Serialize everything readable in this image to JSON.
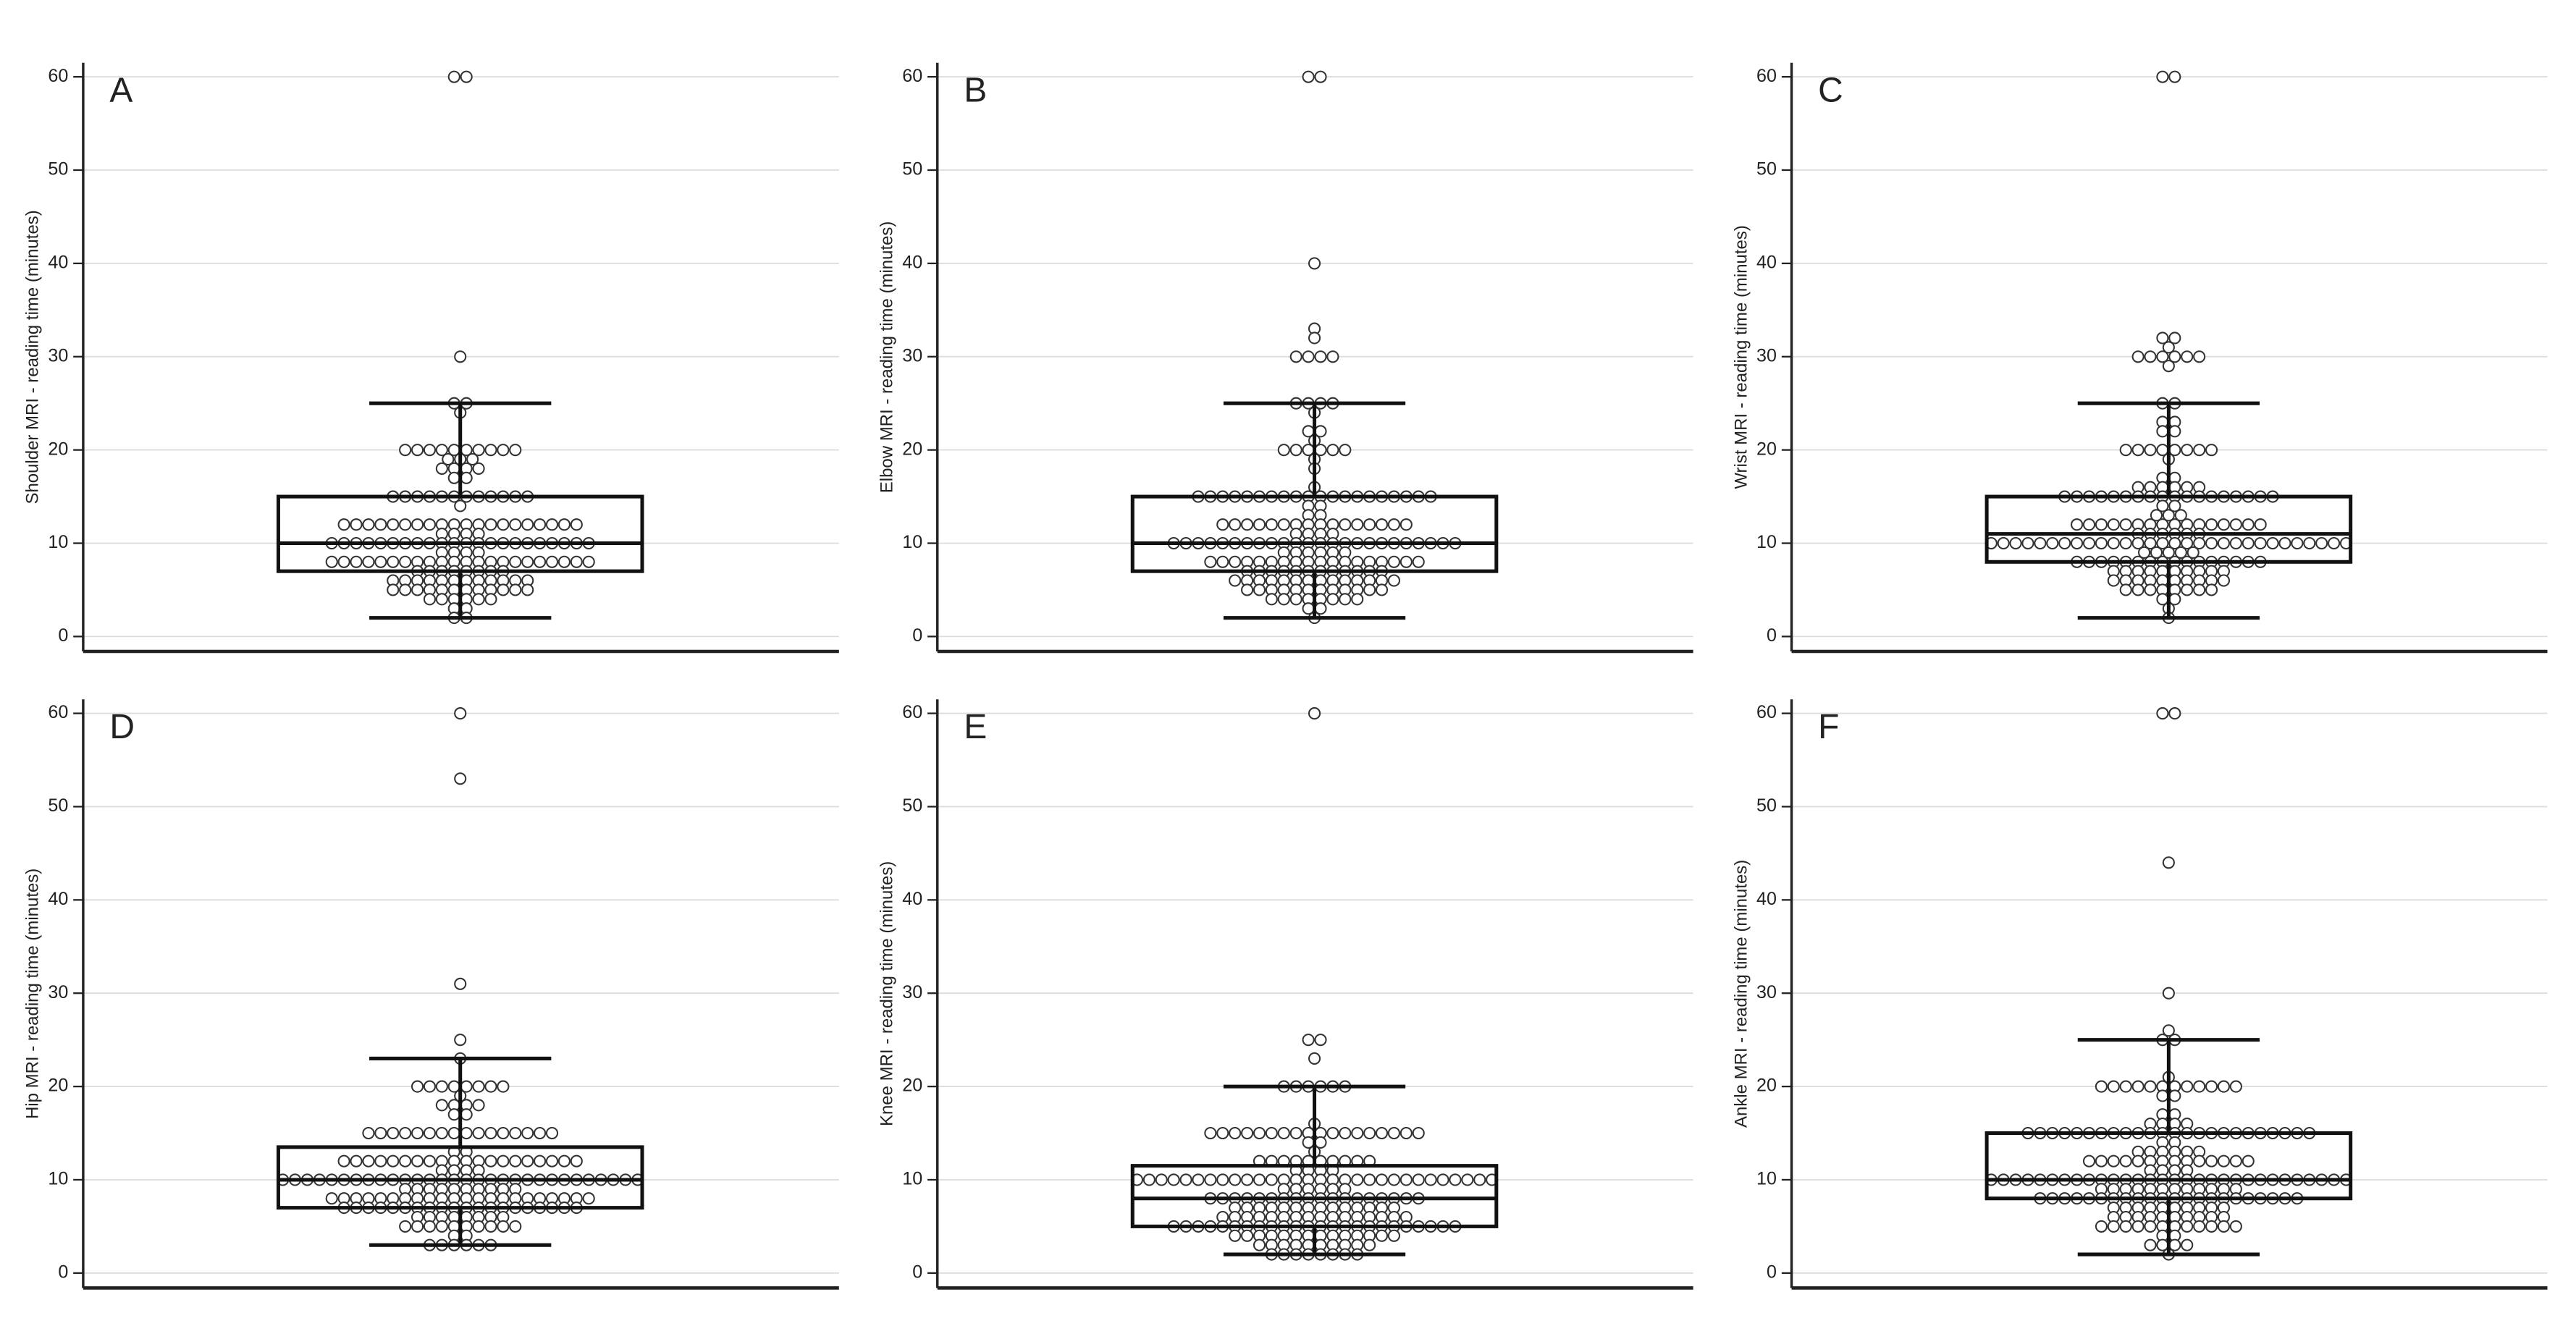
{
  "chart_data": [
    {
      "type": "box",
      "panel_label": "A",
      "ylabel": "Shoulder MRI - reading time (minutes)",
      "ylim": [
        -1.6,
        61.5
      ],
      "yticks": [
        0,
        10,
        20,
        30,
        40,
        50,
        60
      ],
      "grid": true,
      "whisker_low": 2,
      "q1": 7,
      "median": 10,
      "q3": 15,
      "whisker_high": 25,
      "points": [
        [
          60,
          2
        ],
        [
          30,
          1
        ],
        [
          25,
          2
        ],
        [
          24,
          1
        ],
        [
          20,
          10
        ],
        [
          19,
          3
        ],
        [
          18,
          4
        ],
        [
          17,
          2
        ],
        [
          15,
          12
        ],
        [
          14,
          1
        ],
        [
          12,
          20
        ],
        [
          11,
          4
        ],
        [
          10,
          22
        ],
        [
          9,
          4
        ],
        [
          8,
          22
        ],
        [
          7,
          8
        ],
        [
          6,
          12
        ],
        [
          5,
          12
        ],
        [
          4,
          6
        ],
        [
          3,
          2
        ],
        [
          2,
          2
        ]
      ]
    },
    {
      "type": "box",
      "panel_label": "B",
      "ylabel": "Elbow MRI - reading time (minutes)",
      "ylim": [
        -1.6,
        61.5
      ],
      "yticks": [
        0,
        10,
        20,
        30,
        40,
        50,
        60
      ],
      "grid": true,
      "whisker_low": 2,
      "q1": 7,
      "median": 10,
      "q3": 15,
      "whisker_high": 25,
      "points": [
        [
          60,
          2
        ],
        [
          40,
          1
        ],
        [
          33,
          1
        ],
        [
          32,
          1
        ],
        [
          30,
          4
        ],
        [
          25,
          4
        ],
        [
          24,
          1
        ],
        [
          22,
          2
        ],
        [
          21,
          1
        ],
        [
          20,
          6
        ],
        [
          19,
          1
        ],
        [
          18,
          1
        ],
        [
          16,
          1
        ],
        [
          15,
          20
        ],
        [
          14,
          2
        ],
        [
          13,
          2
        ],
        [
          12,
          16
        ],
        [
          11,
          4
        ],
        [
          10,
          24
        ],
        [
          9,
          6
        ],
        [
          8,
          18
        ],
        [
          7,
          12
        ],
        [
          6,
          14
        ],
        [
          5,
          12
        ],
        [
          4,
          8
        ],
        [
          3,
          2
        ],
        [
          2,
          1
        ]
      ]
    },
    {
      "type": "box",
      "panel_label": "C",
      "ylabel": "Wrist MRI - reading time (minutes)",
      "ylim": [
        -1.6,
        61.5
      ],
      "yticks": [
        0,
        10,
        20,
        30,
        40,
        50,
        60
      ],
      "grid": true,
      "whisker_low": 2,
      "q1": 8,
      "median": 11,
      "q3": 15,
      "whisker_high": 25,
      "points": [
        [
          60,
          2
        ],
        [
          32,
          2
        ],
        [
          31,
          1
        ],
        [
          30,
          6
        ],
        [
          29,
          1
        ],
        [
          25,
          2
        ],
        [
          23,
          2
        ],
        [
          22,
          2
        ],
        [
          20,
          8
        ],
        [
          19,
          1
        ],
        [
          17,
          2
        ],
        [
          16,
          6
        ],
        [
          15,
          18
        ],
        [
          14,
          2
        ],
        [
          13,
          3
        ],
        [
          12,
          16
        ],
        [
          11,
          6
        ],
        [
          10,
          30
        ],
        [
          9,
          5
        ],
        [
          8,
          16
        ],
        [
          7,
          10
        ],
        [
          6,
          10
        ],
        [
          5,
          8
        ],
        [
          4,
          2
        ],
        [
          3,
          1
        ],
        [
          2,
          1
        ]
      ]
    },
    {
      "type": "box",
      "panel_label": "D",
      "ylabel": "Hip MRI - reading time (minutes)",
      "ylim": [
        -1.6,
        61.5
      ],
      "yticks": [
        0,
        10,
        20,
        30,
        40,
        50,
        60
      ],
      "grid": true,
      "whisker_low": 3,
      "q1": 7,
      "median": 10,
      "q3": 13.5,
      "whisker_high": 23,
      "points": [
        [
          60,
          1
        ],
        [
          53,
          1
        ],
        [
          31,
          1
        ],
        [
          25,
          1
        ],
        [
          23,
          1
        ],
        [
          20,
          8
        ],
        [
          19,
          1
        ],
        [
          18,
          4
        ],
        [
          17,
          2
        ],
        [
          15,
          16
        ],
        [
          13,
          2
        ],
        [
          12,
          20
        ],
        [
          11,
          4
        ],
        [
          10,
          30
        ],
        [
          9,
          10
        ],
        [
          8,
          22
        ],
        [
          7,
          20
        ],
        [
          6,
          8
        ],
        [
          5,
          10
        ],
        [
          4,
          2
        ],
        [
          3,
          6
        ]
      ]
    },
    {
      "type": "box",
      "panel_label": "E",
      "ylabel": "Knee MRI - reading time (minutes)",
      "ylim": [
        -1.6,
        61.5
      ],
      "yticks": [
        0,
        10,
        20,
        30,
        40,
        50,
        60
      ],
      "grid": true,
      "whisker_low": 2,
      "q1": 5,
      "median": 8,
      "q3": 11.5,
      "whisker_high": 20,
      "points": [
        [
          60,
          1
        ],
        [
          25,
          2
        ],
        [
          23,
          1
        ],
        [
          20,
          6
        ],
        [
          16,
          1
        ],
        [
          15,
          18
        ],
        [
          14,
          2
        ],
        [
          13,
          1
        ],
        [
          12,
          10
        ],
        [
          11,
          4
        ],
        [
          10,
          30
        ],
        [
          9,
          6
        ],
        [
          8,
          18
        ],
        [
          7,
          14
        ],
        [
          6,
          16
        ],
        [
          5,
          24
        ],
        [
          4,
          14
        ],
        [
          3,
          10
        ],
        [
          2,
          8
        ]
      ]
    },
    {
      "type": "box",
      "panel_label": "F",
      "ylabel": "Ankle MRI - reading time (minutes)",
      "ylim": [
        -1.6,
        61.5
      ],
      "yticks": [
        0,
        10,
        20,
        30,
        40,
        50,
        60
      ],
      "grid": true,
      "whisker_low": 2,
      "q1": 8,
      "median": 10,
      "q3": 15,
      "whisker_high": 25,
      "points": [
        [
          60,
          2
        ],
        [
          44,
          1
        ],
        [
          30,
          1
        ],
        [
          26,
          1
        ],
        [
          25,
          2
        ],
        [
          21,
          1
        ],
        [
          20,
          12
        ],
        [
          19,
          2
        ],
        [
          17,
          2
        ],
        [
          16,
          4
        ],
        [
          15,
          24
        ],
        [
          14,
          2
        ],
        [
          13,
          6
        ],
        [
          12,
          14
        ],
        [
          11,
          4
        ],
        [
          10,
          30
        ],
        [
          9,
          12
        ],
        [
          8,
          22
        ],
        [
          7,
          10
        ],
        [
          6,
          10
        ],
        [
          5,
          12
        ],
        [
          4,
          2
        ],
        [
          3,
          4
        ],
        [
          2,
          1
        ]
      ]
    }
  ]
}
